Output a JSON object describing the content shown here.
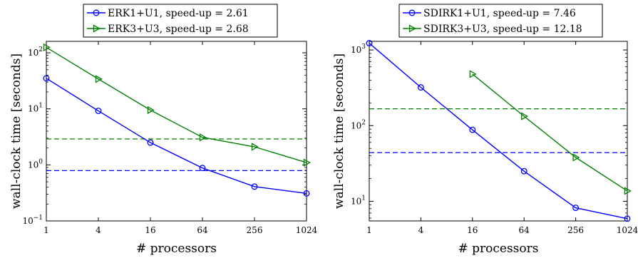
{
  "chart_data": [
    {
      "type": "line",
      "xlabel": "# processors",
      "ylabel": "wall-clock time [seconds]",
      "xscale": "log2",
      "yscale": "log10",
      "xlim": [
        1,
        1024
      ],
      "ylim": [
        0.1,
        160
      ],
      "x_ticks": [
        1,
        4,
        16,
        64,
        256,
        1024
      ],
      "x_tick_labels": [
        "1",
        "4",
        "16",
        "64",
        "256",
        "1024"
      ],
      "y_ticks": [
        0.1,
        1,
        10,
        100
      ],
      "y_tick_labels": [
        {
          "base": "10",
          "exp": "−1"
        },
        {
          "base": "10",
          "exp": "0"
        },
        {
          "base": "10",
          "exp": "1"
        },
        {
          "base": "10",
          "exp": "2"
        }
      ],
      "legend_position": "top (above axes)",
      "series": [
        {
          "name": "ERK1+U1, speed-up = 2.61",
          "color": "#0000ff",
          "marker": "circle",
          "x": [
            1,
            4,
            16,
            64,
            256,
            1024
          ],
          "y": [
            35,
            9.2,
            2.5,
            0.88,
            0.41,
            0.31
          ]
        },
        {
          "name": "ERK3+U3, speed-up = 2.68",
          "color": "#008000",
          "marker": "triangle-right",
          "x": [
            1,
            4,
            16,
            64,
            256,
            1024
          ],
          "y": [
            125,
            34,
            9.5,
            3.1,
            2.1,
            1.1
          ]
        }
      ],
      "reference_lines": [
        {
          "color": "#0000ff",
          "style": "dashed",
          "y": 0.79
        },
        {
          "color": "#008000",
          "style": "dashed",
          "y": 2.9
        }
      ]
    },
    {
      "type": "line",
      "xlabel": "# processors",
      "ylabel": "wall-clock time [seconds]",
      "xscale": "log2",
      "yscale": "log10",
      "xlim": [
        1,
        1024
      ],
      "ylim": [
        5.5,
        1300
      ],
      "x_ticks": [
        1,
        4,
        16,
        64,
        256,
        1024
      ],
      "x_tick_labels": [
        "1",
        "4",
        "16",
        "64",
        "256",
        "1024"
      ],
      "y_ticks": [
        10,
        100,
        1000
      ],
      "y_tick_labels": [
        {
          "base": "10",
          "exp": "1"
        },
        {
          "base": "10",
          "exp": "2"
        },
        {
          "base": "10",
          "exp": "3"
        }
      ],
      "legend_position": "top (above axes)",
      "series": [
        {
          "name": "SDIRK1+U1, speed-up = 7.46",
          "color": "#0000ff",
          "marker": "circle",
          "x": [
            1,
            4,
            16,
            64,
            256,
            1024
          ],
          "y": [
            1230,
            320,
            88,
            25,
            8.2,
            5.9
          ]
        },
        {
          "name": "SDIRK3+U3, speed-up = 12.18",
          "color": "#008000",
          "marker": "triangle-right",
          "x": [
            16,
            64,
            256,
            1024
          ],
          "y": [
            480,
            133,
            38,
            13.7
          ]
        }
      ],
      "reference_lines": [
        {
          "color": "#0000ff",
          "style": "dashed",
          "y": 44
        },
        {
          "color": "#008000",
          "style": "dashed",
          "y": 167
        }
      ]
    }
  ]
}
